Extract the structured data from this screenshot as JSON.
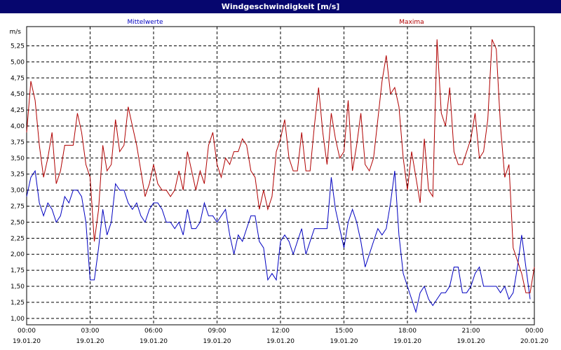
{
  "window": {
    "title": "Windgeschwindigkeit [m/s]"
  },
  "chart_data": {
    "type": "line",
    "title": "Windgeschwindigkeit [m/s]",
    "ylabel": "m/s",
    "ylim": [
      0.9,
      5.55
    ],
    "y_ticks": [
      "1,00",
      "1,25",
      "1,50",
      "1,75",
      "2,00",
      "2,25",
      "2,50",
      "2,75",
      "3,00",
      "3,25",
      "3,50",
      "3,75",
      "4,00",
      "4,25",
      "4,50",
      "4,75",
      "5,00",
      "5,25"
    ],
    "y_tick_values": [
      1.0,
      1.25,
      1.5,
      1.75,
      2.0,
      2.25,
      2.5,
      2.75,
      3.0,
      3.25,
      3.5,
      3.75,
      4.0,
      4.25,
      4.5,
      4.75,
      5.0,
      5.25
    ],
    "xlim": [
      0,
      24
    ],
    "x_ticks": [
      {
        "time": "00:00",
        "date": "19.01.20",
        "hour": 0
      },
      {
        "time": "03:00",
        "date": "19.01.20",
        "hour": 3
      },
      {
        "time": "06:00",
        "date": "19.01.20",
        "hour": 6
      },
      {
        "time": "09:00",
        "date": "19.01.20",
        "hour": 9
      },
      {
        "time": "12:00",
        "date": "19.01.20",
        "hour": 12
      },
      {
        "time": "15:00",
        "date": "19.01.20",
        "hour": 15
      },
      {
        "time": "18:00",
        "date": "19.01.20",
        "hour": 18
      },
      {
        "time": "21:00",
        "date": "19.01.20",
        "hour": 21
      },
      {
        "time": "00:00",
        "date": "20.01.20",
        "hour": 24
      }
    ],
    "grid": true,
    "legend_position": "top",
    "series": [
      {
        "name": "Mittelwerte",
        "color": "#0000c0",
        "points": [
          [
            0,
            2.9
          ],
          [
            0.2,
            3.2
          ],
          [
            0.4,
            3.3
          ],
          [
            0.6,
            2.8
          ],
          [
            0.8,
            2.6
          ],
          [
            1,
            2.8
          ],
          [
            1.2,
            2.7
          ],
          [
            1.4,
            2.5
          ],
          [
            1.6,
            2.6
          ],
          [
            1.8,
            2.9
          ],
          [
            2,
            2.8
          ],
          [
            2.2,
            3.0
          ],
          [
            2.4,
            3.0
          ],
          [
            2.6,
            2.9
          ],
          [
            2.8,
            2.5
          ],
          [
            3,
            1.6
          ],
          [
            3.2,
            1.6
          ],
          [
            3.4,
            2.1
          ],
          [
            3.6,
            2.7
          ],
          [
            3.8,
            2.3
          ],
          [
            4,
            2.5
          ],
          [
            4.2,
            3.1
          ],
          [
            4.4,
            3.0
          ],
          [
            4.6,
            3.0
          ],
          [
            4.8,
            2.8
          ],
          [
            5,
            2.7
          ],
          [
            5.2,
            2.8
          ],
          [
            5.4,
            2.6
          ],
          [
            5.6,
            2.5
          ],
          [
            5.8,
            2.7
          ],
          [
            6,
            2.8
          ],
          [
            6.2,
            2.8
          ],
          [
            6.4,
            2.7
          ],
          [
            6.6,
            2.5
          ],
          [
            6.8,
            2.5
          ],
          [
            7,
            2.4
          ],
          [
            7.2,
            2.5
          ],
          [
            7.4,
            2.3
          ],
          [
            7.6,
            2.7
          ],
          [
            7.8,
            2.4
          ],
          [
            8,
            2.4
          ],
          [
            8.2,
            2.5
          ],
          [
            8.4,
            2.8
          ],
          [
            8.6,
            2.6
          ],
          [
            8.8,
            2.6
          ],
          [
            9,
            2.5
          ],
          [
            9.2,
            2.6
          ],
          [
            9.4,
            2.7
          ],
          [
            9.6,
            2.3
          ],
          [
            9.8,
            2.0
          ],
          [
            10,
            2.3
          ],
          [
            10.2,
            2.2
          ],
          [
            10.4,
            2.4
          ],
          [
            10.6,
            2.6
          ],
          [
            10.8,
            2.6
          ],
          [
            11,
            2.2
          ],
          [
            11.2,
            2.1
          ],
          [
            11.4,
            1.6
          ],
          [
            11.6,
            1.7
          ],
          [
            11.8,
            1.6
          ],
          [
            12,
            2.2
          ],
          [
            12.2,
            2.3
          ],
          [
            12.4,
            2.2
          ],
          [
            12.6,
            2.0
          ],
          [
            12.8,
            2.2
          ],
          [
            13,
            2.4
          ],
          [
            13.2,
            2.0
          ],
          [
            13.4,
            2.2
          ],
          [
            13.6,
            2.4
          ],
          [
            13.8,
            2.4
          ],
          [
            14,
            2.4
          ],
          [
            14.2,
            2.4
          ],
          [
            14.4,
            3.2
          ],
          [
            14.6,
            2.7
          ],
          [
            14.8,
            2.4
          ],
          [
            15,
            2.1
          ],
          [
            15.2,
            2.5
          ],
          [
            15.4,
            2.7
          ],
          [
            15.6,
            2.5
          ],
          [
            15.8,
            2.2
          ],
          [
            16,
            1.8
          ],
          [
            16.2,
            2.0
          ],
          [
            16.4,
            2.2
          ],
          [
            16.6,
            2.4
          ],
          [
            16.8,
            2.3
          ],
          [
            17,
            2.4
          ],
          [
            17.2,
            2.8
          ],
          [
            17.4,
            3.3
          ],
          [
            17.6,
            2.3
          ],
          [
            17.8,
            1.7
          ],
          [
            18,
            1.5
          ],
          [
            18.2,
            1.3
          ],
          [
            18.4,
            1.1
          ],
          [
            18.6,
            1.4
          ],
          [
            18.8,
            1.5
          ],
          [
            19,
            1.3
          ],
          [
            19.2,
            1.2
          ],
          [
            19.4,
            1.3
          ],
          [
            19.6,
            1.4
          ],
          [
            19.8,
            1.4
          ],
          [
            20,
            1.5
          ],
          [
            20.2,
            1.8
          ],
          [
            20.4,
            1.8
          ],
          [
            20.6,
            1.4
          ],
          [
            20.8,
            1.4
          ],
          [
            21,
            1.5
          ],
          [
            21.2,
            1.7
          ],
          [
            21.4,
            1.8
          ],
          [
            21.6,
            1.5
          ],
          [
            21.8,
            1.5
          ],
          [
            22,
            1.5
          ],
          [
            22.2,
            1.5
          ],
          [
            22.4,
            1.4
          ],
          [
            22.6,
            1.5
          ],
          [
            22.8,
            1.3
          ],
          [
            23,
            1.4
          ],
          [
            23.2,
            1.8
          ],
          [
            23.4,
            2.3
          ],
          [
            23.6,
            1.8
          ],
          [
            23.8,
            1.3
          ]
        ]
      },
      {
        "name": "Maxima",
        "color": "#b00000",
        "points": [
          [
            0,
            3.9
          ],
          [
            0.2,
            4.7
          ],
          [
            0.4,
            4.4
          ],
          [
            0.6,
            3.7
          ],
          [
            0.8,
            3.2
          ],
          [
            1,
            3.5
          ],
          [
            1.2,
            3.9
          ],
          [
            1.4,
            3.1
          ],
          [
            1.6,
            3.3
          ],
          [
            1.8,
            3.7
          ],
          [
            2,
            3.7
          ],
          [
            2.2,
            3.7
          ],
          [
            2.4,
            4.2
          ],
          [
            2.6,
            3.9
          ],
          [
            2.8,
            3.4
          ],
          [
            3,
            3.2
          ],
          [
            3.2,
            2.2
          ],
          [
            3.4,
            2.7
          ],
          [
            3.6,
            3.7
          ],
          [
            3.8,
            3.3
          ],
          [
            4,
            3.4
          ],
          [
            4.2,
            4.1
          ],
          [
            4.4,
            3.6
          ],
          [
            4.6,
            3.7
          ],
          [
            4.8,
            4.3
          ],
          [
            5,
            4.0
          ],
          [
            5.2,
            3.7
          ],
          [
            5.4,
            3.3
          ],
          [
            5.6,
            2.9
          ],
          [
            5.8,
            3.1
          ],
          [
            6,
            3.4
          ],
          [
            6.2,
            3.1
          ],
          [
            6.4,
            3.0
          ],
          [
            6.6,
            3.0
          ],
          [
            6.8,
            2.9
          ],
          [
            7,
            3.0
          ],
          [
            7.2,
            3.3
          ],
          [
            7.4,
            3.0
          ],
          [
            7.6,
            3.6
          ],
          [
            7.8,
            3.3
          ],
          [
            8,
            3.0
          ],
          [
            8.2,
            3.3
          ],
          [
            8.4,
            3.1
          ],
          [
            8.6,
            3.7
          ],
          [
            8.8,
            3.9
          ],
          [
            9,
            3.4
          ],
          [
            9.2,
            3.2
          ],
          [
            9.4,
            3.5
          ],
          [
            9.6,
            3.4
          ],
          [
            9.8,
            3.6
          ],
          [
            10,
            3.6
          ],
          [
            10.2,
            3.8
          ],
          [
            10.4,
            3.7
          ],
          [
            10.6,
            3.3
          ],
          [
            10.8,
            3.2
          ],
          [
            11,
            2.7
          ],
          [
            11.2,
            3.0
          ],
          [
            11.4,
            2.7
          ],
          [
            11.6,
            2.9
          ],
          [
            11.8,
            3.6
          ],
          [
            12,
            3.8
          ],
          [
            12.2,
            4.1
          ],
          [
            12.4,
            3.5
          ],
          [
            12.6,
            3.3
          ],
          [
            12.8,
            3.3
          ],
          [
            13,
            3.9
          ],
          [
            13.2,
            3.3
          ],
          [
            13.4,
            3.3
          ],
          [
            13.6,
            4.0
          ],
          [
            13.8,
            4.6
          ],
          [
            14,
            3.9
          ],
          [
            14.2,
            3.4
          ],
          [
            14.4,
            4.2
          ],
          [
            14.6,
            3.8
          ],
          [
            14.8,
            3.5
          ],
          [
            15,
            3.6
          ],
          [
            15.2,
            4.4
          ],
          [
            15.4,
            3.3
          ],
          [
            15.6,
            3.7
          ],
          [
            15.8,
            4.2
          ],
          [
            16,
            3.4
          ],
          [
            16.2,
            3.3
          ],
          [
            16.4,
            3.5
          ],
          [
            16.6,
            4.1
          ],
          [
            16.8,
            4.7
          ],
          [
            17,
            5.1
          ],
          [
            17.2,
            4.5
          ],
          [
            17.4,
            4.6
          ],
          [
            17.6,
            4.3
          ],
          [
            17.8,
            3.5
          ],
          [
            18,
            3.0
          ],
          [
            18.2,
            3.6
          ],
          [
            18.4,
            3.2
          ],
          [
            18.6,
            2.8
          ],
          [
            18.8,
            3.8
          ],
          [
            19,
            3.0
          ],
          [
            19.2,
            2.9
          ],
          [
            19.4,
            5.35
          ],
          [
            19.6,
            4.2
          ],
          [
            19.8,
            4.0
          ],
          [
            20,
            4.6
          ],
          [
            20.2,
            3.6
          ],
          [
            20.4,
            3.4
          ],
          [
            20.6,
            3.4
          ],
          [
            20.8,
            3.6
          ],
          [
            21,
            3.8
          ],
          [
            21.2,
            4.2
          ],
          [
            21.4,
            3.5
          ],
          [
            21.6,
            3.6
          ],
          [
            21.8,
            4.1
          ],
          [
            22,
            5.35
          ],
          [
            22.2,
            5.2
          ],
          [
            22.4,
            4.0
          ],
          [
            22.6,
            3.2
          ],
          [
            22.8,
            3.4
          ],
          [
            23,
            2.1
          ],
          [
            23.2,
            1.9
          ],
          [
            23.4,
            1.7
          ],
          [
            23.6,
            1.4
          ],
          [
            23.8,
            1.4
          ],
          [
            24,
            1.8
          ]
        ]
      }
    ]
  }
}
